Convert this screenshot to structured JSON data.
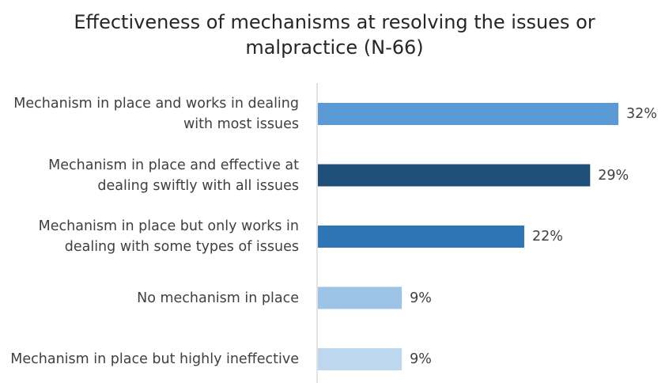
{
  "chart_data": {
    "type": "bar",
    "orientation": "horizontal",
    "title": "Effectiveness of mechanisms at resolving the issues or malpractice (N-66)",
    "categories": [
      "Mechanism in place and works in dealing with most issues",
      "Mechanism in place and effective at dealing swiftly with all issues",
      "Mechanism in place but only works in dealing with some types of issues",
      "No mechanism in place",
      "Mechanism in place but highly ineffective"
    ],
    "values": [
      32,
      29,
      22,
      9,
      9
    ],
    "value_labels": [
      "32%",
      "29%",
      "22%",
      "9%",
      "9%"
    ],
    "colors": [
      "#5b9bd5",
      "#1f4e79",
      "#2e75b6",
      "#9dc3e6",
      "#bdd7ee"
    ]
  }
}
